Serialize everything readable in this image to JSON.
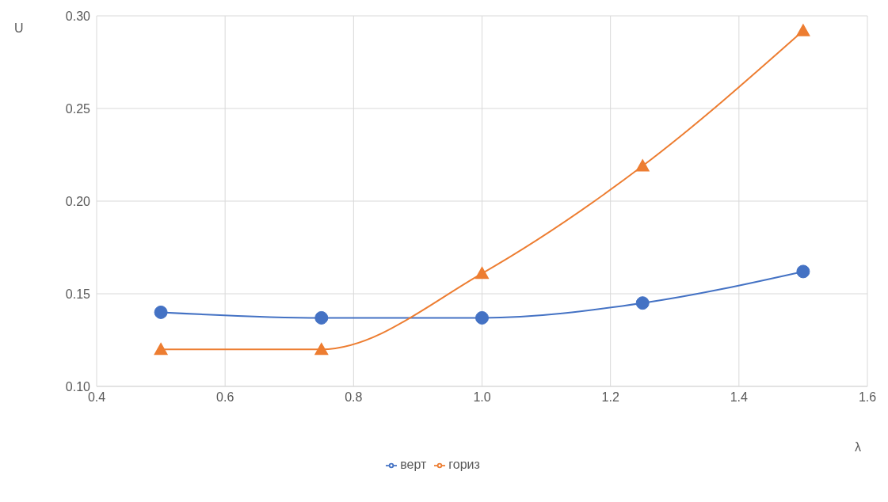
{
  "chart_data": {
    "type": "line",
    "xlabel": "λ",
    "ylabel": "U",
    "x": [
      0.5,
      0.75,
      1.0,
      1.25,
      1.5
    ],
    "series": [
      {
        "name": "верт",
        "color": "#4472c4",
        "marker": "circle",
        "values": [
          0.14,
          0.137,
          0.137,
          0.145,
          0.162
        ]
      },
      {
        "name": "гориз",
        "color": "#ed7d31",
        "marker": "triangle",
        "values": [
          0.12,
          0.12,
          0.161,
          0.219,
          0.292
        ]
      }
    ],
    "xlim": [
      0.4,
      1.6
    ],
    "xticks": [
      {
        "value": 0.4,
        "label": "0.4"
      },
      {
        "value": 0.6,
        "label": "0.6"
      },
      {
        "value": 0.8,
        "label": "0.8"
      },
      {
        "value": 1.0,
        "label": "1.0"
      },
      {
        "value": 1.2,
        "label": "1.2"
      },
      {
        "value": 1.4,
        "label": "1.4"
      },
      {
        "value": 1.6,
        "label": "1.6"
      }
    ],
    "ylim": [
      0.1,
      0.3
    ],
    "yticks": [
      {
        "value": 0.1,
        "label": "0.10"
      },
      {
        "value": 0.15,
        "label": "0.15"
      },
      {
        "value": 0.2,
        "label": "0.20"
      },
      {
        "value": 0.25,
        "label": "0.25"
      },
      {
        "value": 0.3,
        "label": "0.30"
      }
    ],
    "grid": true,
    "legend": "bottom",
    "line_style": "solid"
  }
}
